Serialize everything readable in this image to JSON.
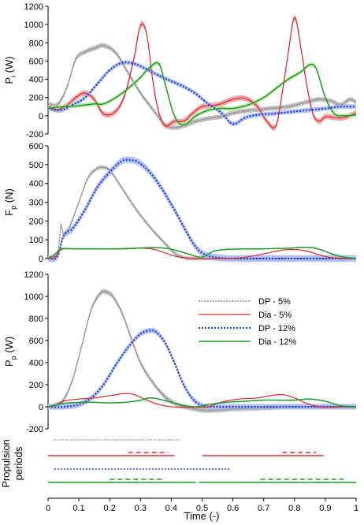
{
  "xaxis": {
    "label": "Time (-)",
    "ticks": [
      "0",
      "0.1",
      "0.2",
      "0.3",
      "0.4",
      "0.5",
      "0.6",
      "0.7",
      "0.8",
      "0.9",
      "1"
    ]
  },
  "series_styles": [
    {
      "key": "dp5",
      "color": "#7a7a7a",
      "band": "#b8b8b8",
      "dash": "2,1.5",
      "width": 1.2
    },
    {
      "key": "dia5",
      "color": "#e0282d",
      "band": "#f0a0a2",
      "dash": "",
      "width": 1.2
    },
    {
      "key": "dp12",
      "color": "#2233cc",
      "band": "#a9bdf0",
      "dash": "2,2",
      "width": 2
    },
    {
      "key": "dia12",
      "color": "#1a9e2a",
      "band": "#b8e6a0",
      "dash": "",
      "width": 1.5
    }
  ],
  "legend": [
    {
      "key": "dp5",
      "label": "DP  - 5%"
    },
    {
      "key": "dia5",
      "label": "Dia  - 5%"
    },
    {
      "key": "dp12",
      "label": "DP  - 12%"
    },
    {
      "key": "dia12",
      "label": "Dia  - 12%"
    }
  ],
  "chart_data": [
    {
      "type": "line",
      "ylabel": "P",
      "ylabel_sub": "i",
      "ylabel_unit": " (W)",
      "ylim": [
        -200,
        1200
      ],
      "yticks": [
        "-200",
        "0",
        "200",
        "400",
        "600",
        "800",
        "1000",
        "1200"
      ],
      "series": [
        {
          "key": "dp5",
          "band": 25,
          "x": [
            0,
            0.03,
            0.06,
            0.09,
            0.12,
            0.15,
            0.18,
            0.22,
            0.26,
            0.3,
            0.34,
            0.38,
            0.41,
            0.44,
            0.48,
            0.52,
            0.56,
            0.6,
            0.66,
            0.72,
            0.78,
            0.84,
            0.88,
            0.92,
            0.95,
            0.98,
            1.0
          ],
          "y": [
            130,
            120,
            300,
            620,
            700,
            740,
            770,
            690,
            470,
            250,
            70,
            -100,
            -130,
            -110,
            -60,
            -30,
            -10,
            30,
            60,
            80,
            100,
            150,
            180,
            160,
            120,
            180,
            150
          ]
        },
        {
          "key": "dia5",
          "band": 30,
          "x": [
            0,
            0.03,
            0.06,
            0.09,
            0.12,
            0.15,
            0.18,
            0.22,
            0.25,
            0.28,
            0.3,
            0.32,
            0.34,
            0.36,
            0.38,
            0.41,
            0.44,
            0.47,
            0.5,
            0.55,
            0.6,
            0.64,
            0.68,
            0.71,
            0.74,
            0.76,
            0.78,
            0.8,
            0.82,
            0.84,
            0.86,
            0.88,
            0.9,
            0.93,
            0.96,
            1.0
          ],
          "y": [
            100,
            70,
            110,
            200,
            250,
            180,
            20,
            50,
            240,
            650,
            990,
            900,
            380,
            30,
            -110,
            -60,
            -60,
            30,
            100,
            120,
            180,
            190,
            100,
            -60,
            -110,
            250,
            700,
            1080,
            760,
            330,
            20,
            -60,
            -10,
            -20,
            -20,
            30
          ]
        },
        {
          "key": "dp12",
          "band": 25,
          "x": [
            0,
            0.04,
            0.08,
            0.12,
            0.16,
            0.2,
            0.24,
            0.28,
            0.32,
            0.36,
            0.4,
            0.44,
            0.48,
            0.52,
            0.56,
            0.6,
            0.64,
            0.68,
            0.72,
            0.78,
            0.84,
            0.9,
            0.95,
            1.0
          ],
          "y": [
            80,
            60,
            120,
            200,
            350,
            500,
            580,
            570,
            510,
            440,
            380,
            320,
            240,
            130,
            40,
            -90,
            -20,
            10,
            20,
            40,
            60,
            80,
            100,
            100
          ]
        },
        {
          "key": "dia12",
          "band": 22,
          "x": [
            0,
            0.05,
            0.1,
            0.15,
            0.18,
            0.22,
            0.26,
            0.3,
            0.33,
            0.36,
            0.38,
            0.41,
            0.44,
            0.48,
            0.52,
            0.56,
            0.6,
            0.65,
            0.7,
            0.74,
            0.78,
            0.82,
            0.85,
            0.87,
            0.9,
            0.93,
            0.96,
            1.0
          ],
          "y": [
            80,
            100,
            110,
            130,
            130,
            200,
            300,
            420,
            530,
            570,
            350,
            0,
            -100,
            0,
            60,
            80,
            80,
            120,
            200,
            300,
            400,
            480,
            560,
            520,
            200,
            20,
            0,
            10
          ]
        }
      ]
    },
    {
      "type": "line",
      "ylabel": "F",
      "ylabel_sub": "p",
      "ylabel_unit": " (N)",
      "ylim": [
        0,
        600
      ],
      "yticks": [
        "0",
        "100",
        "200",
        "300",
        "400",
        "500",
        "600"
      ],
      "series": [
        {
          "key": "dp5",
          "band": 10,
          "x": [
            0,
            0.02,
            0.035,
            0.04,
            0.05,
            0.07,
            0.1,
            0.13,
            0.16,
            0.18,
            0.2,
            0.23,
            0.27,
            0.3,
            0.34,
            0.38,
            0.41,
            0.44,
            0.47,
            0.5,
            0.6,
            0.8,
            1.0
          ],
          "y": [
            0,
            10,
            40,
            180,
            130,
            170,
            300,
            430,
            480,
            485,
            470,
            400,
            300,
            230,
            150,
            80,
            30,
            5,
            0,
            0,
            0,
            0,
            0
          ]
        },
        {
          "key": "dp12",
          "band": 18,
          "x": [
            0,
            0.03,
            0.05,
            0.08,
            0.12,
            0.16,
            0.2,
            0.24,
            0.26,
            0.29,
            0.33,
            0.37,
            0.41,
            0.45,
            0.48,
            0.51,
            0.55,
            0.6,
            0.7,
            0.8,
            0.9,
            1.0
          ],
          "y": [
            0,
            10,
            120,
            160,
            260,
            380,
            460,
            520,
            525,
            515,
            460,
            370,
            260,
            140,
            60,
            20,
            5,
            0,
            0,
            0,
            0,
            0
          ]
        },
        {
          "key": "dia5",
          "band": 0,
          "x": [
            0,
            0.02,
            0.04,
            0.07,
            0.1,
            0.2,
            0.3,
            0.34,
            0.38,
            0.42,
            0.48,
            0.55,
            0.62,
            0.7,
            0.76,
            0.8,
            0.84,
            0.88,
            0.92,
            1.0
          ],
          "y": [
            0,
            5,
            45,
            52,
            52,
            52,
            55,
            50,
            30,
            10,
            0,
            0,
            3,
            25,
            45,
            48,
            40,
            20,
            5,
            0
          ]
        },
        {
          "key": "dia12",
          "band": 0,
          "x": [
            0,
            0.02,
            0.04,
            0.08,
            0.15,
            0.25,
            0.33,
            0.38,
            0.42,
            0.46,
            0.5,
            0.54,
            0.6,
            0.7,
            0.78,
            0.84,
            0.88,
            0.92,
            0.96,
            1.0
          ],
          "y": [
            0,
            20,
            50,
            52,
            52,
            52,
            58,
            55,
            42,
            22,
            8,
            40,
            50,
            52,
            55,
            60,
            50,
            25,
            8,
            0
          ]
        }
      ]
    },
    {
      "type": "line",
      "ylabel": "P",
      "ylabel_sub": "p",
      "ylabel_unit": " (W)",
      "ylim": [
        -200,
        1200
      ],
      "yticks": [
        "-200",
        "0",
        "200",
        "400",
        "600",
        "800",
        "1000",
        "1200"
      ],
      "series": [
        {
          "key": "dp5",
          "band": 22,
          "x": [
            0,
            0.02,
            0.05,
            0.08,
            0.11,
            0.14,
            0.17,
            0.19,
            0.21,
            0.24,
            0.27,
            0.3,
            0.34,
            0.38,
            0.42,
            0.46,
            0.5,
            0.55,
            0.6,
            0.7,
            0.8,
            1.0
          ],
          "y": [
            0,
            10,
            60,
            250,
            560,
            880,
            1030,
            1040,
            1000,
            850,
            620,
            400,
            220,
            90,
            20,
            -10,
            -30,
            -30,
            -20,
            -10,
            0,
            0
          ]
        },
        {
          "key": "dp12",
          "band": 25,
          "x": [
            0,
            0.05,
            0.1,
            0.14,
            0.18,
            0.22,
            0.26,
            0.3,
            0.33,
            0.35,
            0.38,
            0.41,
            0.44,
            0.47,
            0.5,
            0.55,
            0.6,
            0.7,
            0.8,
            0.9,
            1.0
          ],
          "y": [
            0,
            0,
            20,
            80,
            200,
            380,
            540,
            660,
            690,
            680,
            580,
            400,
            200,
            70,
            10,
            0,
            0,
            0,
            0,
            0,
            0
          ]
        },
        {
          "key": "dia5",
          "band": 0,
          "x": [
            0,
            0.02,
            0.05,
            0.1,
            0.15,
            0.2,
            0.25,
            0.28,
            0.32,
            0.36,
            0.4,
            0.44,
            0.48,
            0.52,
            0.56,
            0.62,
            0.68,
            0.72,
            0.76,
            0.8,
            0.84,
            0.88,
            0.92,
            0.96,
            1.0
          ],
          "y": [
            0,
            10,
            50,
            70,
            80,
            100,
            120,
            110,
            60,
            20,
            0,
            -5,
            -5,
            0,
            40,
            70,
            80,
            100,
            110,
            80,
            30,
            0,
            -5,
            0,
            0
          ]
        },
        {
          "key": "dia12",
          "band": 0,
          "x": [
            0,
            0.05,
            0.1,
            0.15,
            0.2,
            0.25,
            0.3,
            0.33,
            0.36,
            0.4,
            0.44,
            0.48,
            0.52,
            0.58,
            0.64,
            0.7,
            0.75,
            0.8,
            0.85,
            0.9,
            0.95,
            1.0
          ],
          "y": [
            0,
            30,
            40,
            40,
            35,
            40,
            60,
            80,
            70,
            40,
            10,
            0,
            20,
            40,
            50,
            60,
            60,
            60,
            70,
            50,
            10,
            0
          ]
        }
      ]
    },
    {
      "type": "line",
      "ylabel": "Propulsion",
      "ylabel2": "periods",
      "series": [
        {
          "key": "dp5",
          "segments": [
            [
              0.02,
              0.43
            ]
          ]
        },
        {
          "key": "dia5",
          "segments": [
            [
              0.0,
              0.41
            ],
            [
              0.5,
              0.895
            ]
          ]
        },
        {
          "key": "dia5",
          "style": "dashed",
          "segments": [
            [
              0.26,
              0.39
            ],
            [
              0.76,
              0.87
            ]
          ]
        },
        {
          "key": "dp12",
          "segments": [
            [
              0.02,
              0.59
            ]
          ]
        },
        {
          "key": "dia12",
          "segments": [
            [
              0.0,
              0.48
            ],
            [
              0.49,
              1.0
            ]
          ]
        },
        {
          "key": "dia12",
          "style": "dashed",
          "segments": [
            [
              0.2,
              0.38
            ],
            [
              0.69,
              0.96
            ]
          ]
        }
      ]
    }
  ]
}
